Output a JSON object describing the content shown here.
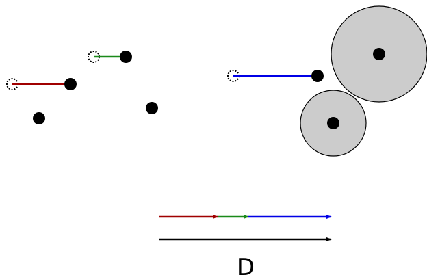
{
  "figure": {
    "total_label": "D",
    "colors": {
      "move_1": "#a00000",
      "move_2": "#1a8a1a",
      "move_3": "#0000e6",
      "total": "#000000",
      "point": "#000000",
      "obstacle_fill": "#cccccc",
      "obstacle_stroke": "#000000",
      "ghost_stroke": "#000000"
    },
    "legend": {
      "segments": [
        {
          "name": "move-1-segment",
          "color_key": "move_1"
        },
        {
          "name": "move-2-segment",
          "color_key": "move_2"
        },
        {
          "name": "move-3-segment",
          "color_key": "move_3"
        }
      ]
    }
  }
}
